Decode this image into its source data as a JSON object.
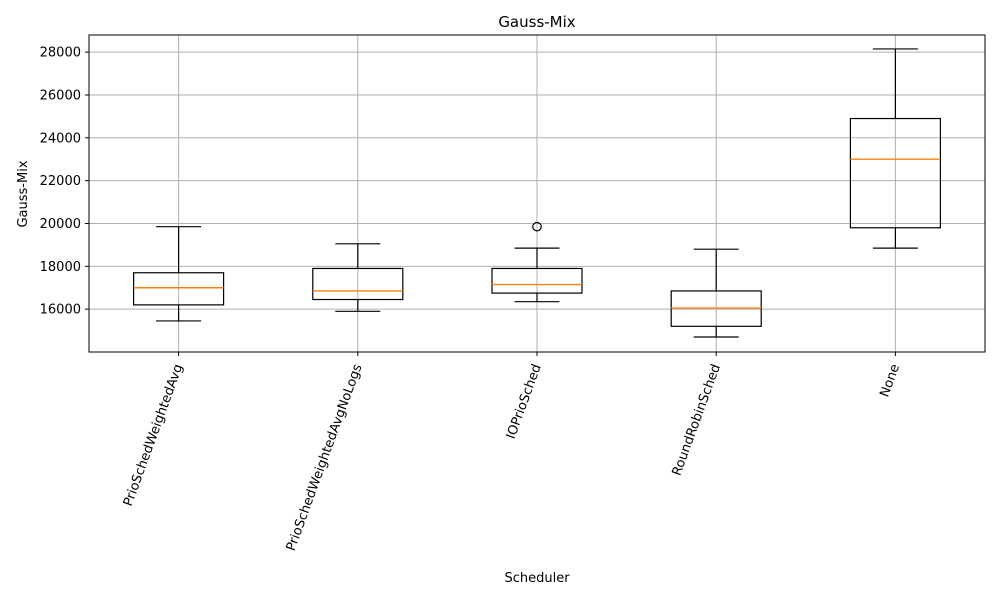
{
  "chart_data": {
    "type": "boxplot",
    "title": "Gauss-Mix",
    "xlabel": "Scheduler",
    "ylabel": "Gauss-Mix",
    "categories": [
      "PrioSchedWeightedAvg",
      "PrioSchedWeightedAvgNoLogs",
      "IOPrioSched",
      "RoundRobinSched",
      "None"
    ],
    "boxes": [
      {
        "whisker_low": 15450,
        "q1": 16200,
        "median": 17000,
        "q3": 17700,
        "whisker_high": 19850,
        "outliers": []
      },
      {
        "whisker_low": 15900,
        "q1": 16450,
        "median": 16850,
        "q3": 17900,
        "whisker_high": 19050,
        "outliers": []
      },
      {
        "whisker_low": 16350,
        "q1": 16750,
        "median": 17150,
        "q3": 17900,
        "whisker_high": 18850,
        "outliers": [
          19850
        ]
      },
      {
        "whisker_low": 14700,
        "q1": 15200,
        "median": 16050,
        "q3": 16850,
        "whisker_high": 18800,
        "outliers": []
      },
      {
        "whisker_low": 18850,
        "q1": 19800,
        "median": 23000,
        "q3": 24900,
        "whisker_high": 28150,
        "outliers": []
      }
    ],
    "yticks": [
      16000,
      18000,
      20000,
      22000,
      24000,
      26000,
      28000
    ],
    "ylim": [
      14000,
      28800
    ],
    "grid": true,
    "colors": {
      "box": "#000000",
      "median": "#ff7f0e",
      "grid": "#b0b0b0"
    }
  }
}
